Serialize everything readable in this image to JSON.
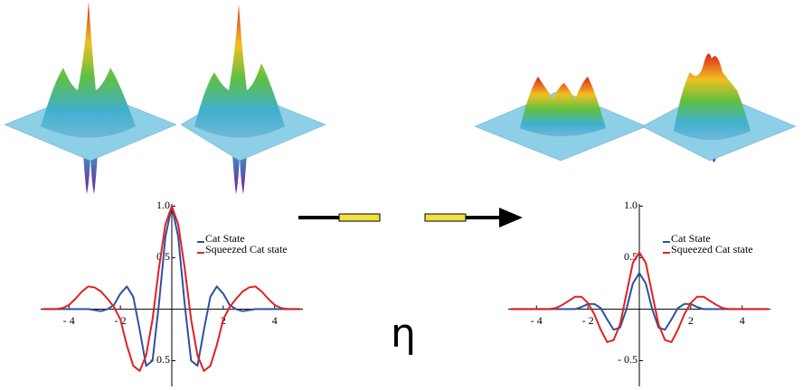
{
  "chart_data": [
    {
      "type": "line",
      "x": [
        -5,
        -4.75,
        -4.5,
        -4.25,
        -4,
        -3.75,
        -3.5,
        -3.25,
        -3,
        -2.75,
        -2.5,
        -2.25,
        -2,
        -1.75,
        -1.5,
        -1.25,
        -1,
        -0.75,
        -0.5,
        -0.25,
        0,
        0.25,
        0.5,
        0.75,
        1,
        1.25,
        1.5,
        1.75,
        2,
        2.25,
        2.5,
        2.75,
        3,
        3.25,
        3.5,
        3.75,
        4,
        4.25,
        4.5,
        4.75,
        5
      ],
      "series": [
        {
          "name": "Cat State",
          "color": "#3050a0",
          "values": [
            0,
            0,
            0,
            0,
            0,
            0,
            0,
            0,
            -0.01,
            -0.02,
            0,
            0.04,
            0.15,
            0.22,
            0.12,
            -0.2,
            -0.55,
            -0.5,
            0.05,
            0.7,
            1.0,
            0.7,
            0.05,
            -0.5,
            -0.55,
            -0.2,
            0.12,
            0.22,
            0.15,
            0.04,
            0,
            -0.02,
            -0.01,
            0,
            0,
            0,
            0,
            0,
            0,
            0,
            0
          ]
        },
        {
          "name": "Squeezed Cat state",
          "color": "#e02020",
          "values": [
            0,
            0,
            0,
            0.01,
            0.04,
            0.1,
            0.17,
            0.22,
            0.21,
            0.17,
            0.1,
            0.02,
            -0.1,
            -0.35,
            -0.55,
            -0.6,
            -0.45,
            -0.1,
            0.4,
            0.82,
            1.0,
            0.82,
            0.4,
            -0.1,
            -0.45,
            -0.6,
            -0.55,
            -0.35,
            -0.1,
            0.02,
            0.1,
            0.17,
            0.21,
            0.22,
            0.17,
            0.1,
            0.04,
            0.01,
            0,
            0,
            0
          ]
        }
      ],
      "xlim": [
        -5.1,
        5.1
      ],
      "ylim": [
        -0.75,
        1.02
      ],
      "xticks": [
        {
          "value": -4,
          "label": "- 4"
        },
        {
          "value": -2,
          "label": "- 2"
        },
        2,
        4
      ],
      "yticks": [
        {
          "value": -0.5,
          "label": "- 0.5"
        },
        0.5,
        {
          "value": 1,
          "label": "1.0"
        }
      ]
    },
    {
      "type": "line",
      "x": [
        -5,
        -4.75,
        -4.5,
        -4.25,
        -4,
        -3.75,
        -3.5,
        -3.25,
        -3,
        -2.75,
        -2.5,
        -2.25,
        -2,
        -1.75,
        -1.5,
        -1.25,
        -1,
        -0.75,
        -0.5,
        -0.25,
        0,
        0.25,
        0.5,
        0.75,
        1,
        1.25,
        1.5,
        1.75,
        2,
        2.25,
        2.5,
        2.75,
        3,
        3.25,
        3.5,
        3.75,
        4,
        4.25,
        4.5,
        4.75,
        5
      ],
      "series": [
        {
          "name": "Cat State",
          "color": "#3050a0",
          "values": [
            0,
            0,
            0,
            0,
            0,
            0,
            0,
            0,
            0,
            0,
            0,
            0.02,
            0.05,
            0.05,
            0.01,
            -0.1,
            -0.2,
            -0.18,
            0,
            0.25,
            0.35,
            0.25,
            0,
            -0.18,
            -0.2,
            -0.1,
            0.01,
            0.05,
            0.05,
            0.02,
            0,
            0,
            0,
            0,
            0,
            0,
            0,
            0,
            0,
            0,
            0
          ]
        },
        {
          "name": "Squeezed Cat state",
          "color": "#e02020",
          "values": [
            0,
            0,
            0,
            0,
            0,
            0,
            0,
            0.01,
            0.04,
            0.08,
            0.12,
            0.12,
            0.06,
            -0.05,
            -0.2,
            -0.32,
            -0.3,
            -0.15,
            0.15,
            0.45,
            0.55,
            0.45,
            0.15,
            -0.15,
            -0.3,
            -0.32,
            -0.2,
            -0.05,
            0.06,
            0.12,
            0.12,
            0.08,
            0.04,
            0.01,
            0,
            0,
            0,
            0,
            0,
            0,
            0
          ]
        }
      ],
      "xlim": [
        -5.1,
        5.1
      ],
      "ylim": [
        -0.75,
        1.02
      ],
      "xticks": [
        {
          "value": -4,
          "label": "- 4"
        },
        {
          "value": -2,
          "label": "- 2"
        },
        2,
        4
      ],
      "yticks": [
        {
          "value": -0.5,
          "label": "- 0.5"
        },
        0.5,
        {
          "value": 1,
          "label": "1.0"
        }
      ]
    }
  ],
  "labels": {
    "eta": "η"
  }
}
